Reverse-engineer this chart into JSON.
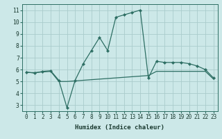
{
  "xlabel": "Humidex (Indice chaleur)",
  "bg_color": "#cce8e8",
  "grid_color": "#aacccc",
  "line_color": "#2d6e63",
  "x_line1": [
    0,
    1,
    2,
    3,
    4,
    5,
    6,
    7,
    8,
    9,
    10,
    11,
    12,
    13,
    14,
    15,
    16,
    17,
    18,
    19,
    20,
    21,
    22,
    23
  ],
  "y_line1": [
    5.8,
    5.7,
    5.85,
    5.9,
    5.1,
    2.8,
    5.1,
    6.5,
    7.6,
    8.7,
    7.6,
    10.4,
    10.6,
    10.8,
    11.0,
    5.3,
    6.7,
    6.6,
    6.6,
    6.6,
    6.5,
    6.3,
    6.0,
    5.3
  ],
  "x_line2": [
    0,
    1,
    2,
    3,
    4,
    5,
    6,
    7,
    8,
    9,
    10,
    11,
    12,
    13,
    14,
    15,
    16,
    17,
    18,
    19,
    20,
    21,
    22,
    23
  ],
  "y_line2": [
    5.75,
    5.75,
    5.8,
    5.85,
    5.0,
    5.0,
    5.05,
    5.1,
    5.15,
    5.2,
    5.25,
    5.3,
    5.35,
    5.4,
    5.45,
    5.5,
    5.85,
    5.85,
    5.85,
    5.85,
    5.85,
    5.85,
    5.85,
    5.2
  ],
  "xlim": [
    -0.5,
    23.5
  ],
  "ylim": [
    2.5,
    11.5
  ],
  "yticks": [
    3,
    4,
    5,
    6,
    7,
    8,
    9,
    10,
    11
  ],
  "xticks": [
    0,
    1,
    2,
    3,
    4,
    5,
    6,
    7,
    8,
    9,
    10,
    11,
    12,
    13,
    14,
    15,
    16,
    17,
    18,
    19,
    20,
    21,
    22,
    23
  ],
  "tick_fontsize": 5.5,
  "xlabel_fontsize": 6.5
}
